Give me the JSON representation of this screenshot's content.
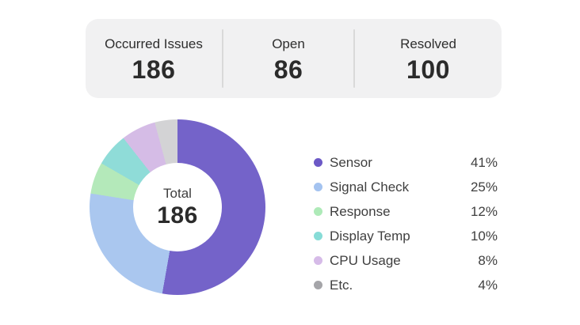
{
  "stats_bar": {
    "items": [
      {
        "label": "Occurred Issues",
        "value": "186"
      },
      {
        "label": "Open",
        "value": "86"
      },
      {
        "label": "Resolved",
        "value": "100"
      }
    ]
  },
  "chart_data": {
    "type": "pie",
    "subtype": "donut",
    "center_label": "Total",
    "center_value": "186",
    "total": 186,
    "legend_position": "right",
    "start_angle_deg": 0,
    "direction": "clockwise",
    "items": [
      {
        "label": "Sensor",
        "value_pct": 41,
        "pct_label": "41%",
        "color": "#7463c9",
        "dot_color": "#6c59c6",
        "display_sweep_deg": 190
      },
      {
        "label": "Signal Check",
        "value_pct": 25,
        "pct_label": "25%",
        "color": "#aac7ef",
        "dot_color": "#a4c3f0",
        "display_sweep_deg": 89
      },
      {
        "label": "Response",
        "value_pct": 12,
        "pct_label": "12%",
        "color": "#b4e9ba",
        "dot_color": "#aeeab8",
        "display_sweep_deg": 21
      },
      {
        "label": "Display Temp",
        "value_pct": 10,
        "pct_label": "10%",
        "color": "#8fdcd8",
        "dot_color": "#87dcd7",
        "display_sweep_deg": 22
      },
      {
        "label": "CPU Usage",
        "value_pct": 8,
        "pct_label": "8%",
        "color": "#d5bce6",
        "dot_color": "#d6bbe8",
        "display_sweep_deg": 23
      },
      {
        "label": "Etc.",
        "value_pct": 4,
        "pct_label": "4%",
        "color": "#d3d3d5",
        "dot_color": "#a5a5a9",
        "display_sweep_deg": 15
      }
    ]
  },
  "colors": {
    "page_bg": "#ffffff",
    "stats_bar_bg": "#f1f1f2",
    "divider": "#d9d9d9",
    "text_dark": "#2b2b2b",
    "text_secondary": "#3f3f3f",
    "donut_hole_bg": "#ffffff"
  }
}
